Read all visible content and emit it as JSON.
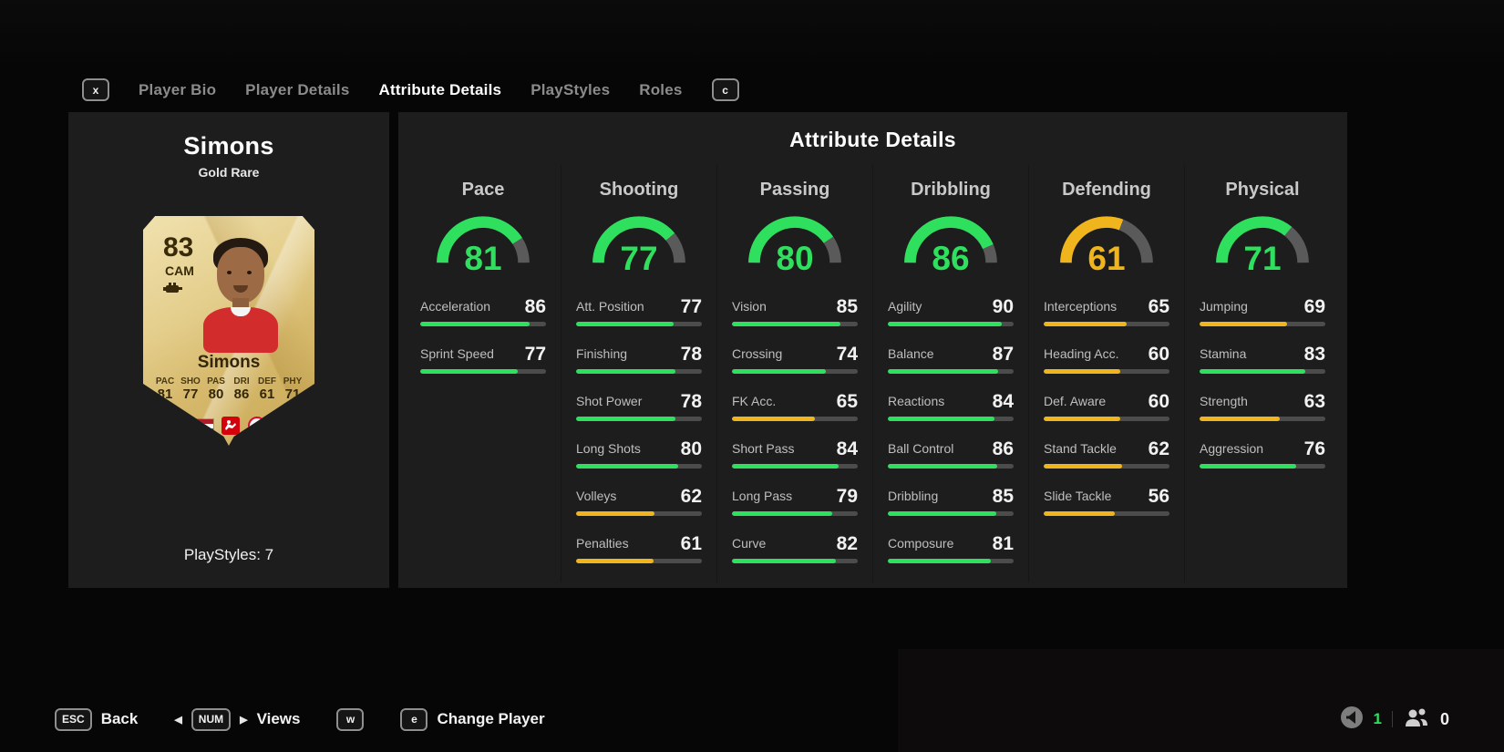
{
  "tabs": {
    "left_key": "x",
    "right_key": "c",
    "items": [
      {
        "label": "Player Bio",
        "active": false
      },
      {
        "label": "Player Details",
        "active": false
      },
      {
        "label": "Attribute Details",
        "active": true
      },
      {
        "label": "PlayStyles",
        "active": false
      },
      {
        "label": "Roles",
        "active": false
      }
    ]
  },
  "player_panel": {
    "name": "Simons",
    "card_type": "Gold Rare",
    "playstyles_label": "PlayStyles: 7",
    "card": {
      "rating": "83",
      "position": "CAM",
      "name": "Simons",
      "stats": [
        {
          "label": "PAC",
          "value": "81"
        },
        {
          "label": "SHO",
          "value": "77"
        },
        {
          "label": "PAS",
          "value": "80"
        },
        {
          "label": "DRI",
          "value": "86"
        },
        {
          "label": "DEF",
          "value": "61"
        },
        {
          "label": "PHY",
          "value": "71"
        }
      ],
      "icons": [
        "netherlands-flag",
        "bundesliga-logo",
        "rb-leipzig-logo"
      ]
    }
  },
  "attribute_panel": {
    "title": "Attribute Details",
    "categories": [
      {
        "name": "Pace",
        "value": 81,
        "stats": [
          {
            "label": "Acceleration",
            "value": 86
          },
          {
            "label": "Sprint Speed",
            "value": 77
          }
        ]
      },
      {
        "name": "Shooting",
        "value": 77,
        "stats": [
          {
            "label": "Att. Position",
            "value": 77
          },
          {
            "label": "Finishing",
            "value": 78
          },
          {
            "label": "Shot Power",
            "value": 78
          },
          {
            "label": "Long Shots",
            "value": 80
          },
          {
            "label": "Volleys",
            "value": 62
          },
          {
            "label": "Penalties",
            "value": 61
          }
        ]
      },
      {
        "name": "Passing",
        "value": 80,
        "stats": [
          {
            "label": "Vision",
            "value": 85
          },
          {
            "label": "Crossing",
            "value": 74
          },
          {
            "label": "FK Acc.",
            "value": 65
          },
          {
            "label": "Short Pass",
            "value": 84
          },
          {
            "label": "Long Pass",
            "value": 79
          },
          {
            "label": "Curve",
            "value": 82
          }
        ]
      },
      {
        "name": "Dribbling",
        "value": 86,
        "stats": [
          {
            "label": "Agility",
            "value": 90
          },
          {
            "label": "Balance",
            "value": 87
          },
          {
            "label": "Reactions",
            "value": 84
          },
          {
            "label": "Ball Control",
            "value": 86
          },
          {
            "label": "Dribbling",
            "value": 85
          },
          {
            "label": "Composure",
            "value": 81
          }
        ]
      },
      {
        "name": "Defending",
        "value": 61,
        "stats": [
          {
            "label": "Interceptions",
            "value": 65
          },
          {
            "label": "Heading Acc.",
            "value": 60
          },
          {
            "label": "Def. Aware",
            "value": 60
          },
          {
            "label": "Stand Tackle",
            "value": 62
          },
          {
            "label": "Slide Tackle",
            "value": 56
          }
        ]
      },
      {
        "name": "Physical",
        "value": 71,
        "stats": [
          {
            "label": "Jumping",
            "value": 69
          },
          {
            "label": "Stamina",
            "value": 83
          },
          {
            "label": "Strength",
            "value": 63
          },
          {
            "label": "Aggression",
            "value": 76
          }
        ]
      }
    ]
  },
  "bottom_bar": {
    "back_key": "ESC",
    "back_label": "Back",
    "views_key": "NUM",
    "views_label": "Views",
    "key_w": "w",
    "key_e": "e",
    "change_player_label": "Change Player",
    "voice_count": "1",
    "online_count": "0"
  },
  "colors": {
    "green": "#2ee05e",
    "yellow": "#f0b51d",
    "gauge_track": "#5a5a5a",
    "bar_track": "#4c4c4c",
    "green_threshold": 70,
    "max_stat": 99
  }
}
